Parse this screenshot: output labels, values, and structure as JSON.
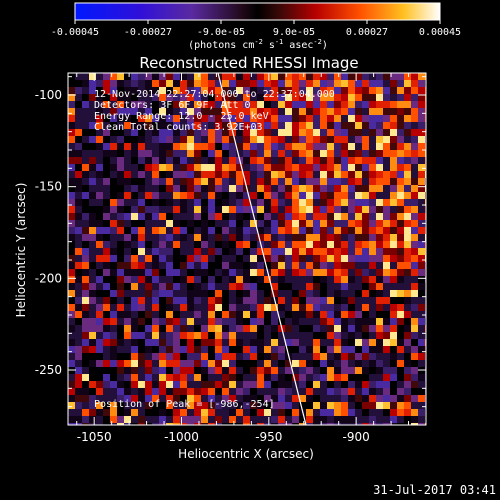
{
  "colorbar": {
    "tick_labels": [
      "-0.00045",
      "-0.00027",
      "-9.0e-05",
      "9.0e-05",
      "0.00027",
      "0.00045"
    ],
    "range": [
      -0.00045,
      0.00045
    ],
    "unit_main": "(photons cm",
    "unit_exp1": "-2",
    "unit_s": " s",
    "unit_exp2": "-1",
    "unit_asec": " asec",
    "unit_exp3": "-2",
    "unit_close": ")"
  },
  "plot": {
    "title": "Reconstructed RHESSI Image",
    "xlabel": "Heliocentric X (arcsec)",
    "ylabel": "Heliocentric Y (arcsec)",
    "x_ticks": [
      "-1050",
      "-1000",
      "-950",
      "-900"
    ],
    "y_ticks": [
      "-100",
      "-150",
      "-200",
      "-250"
    ],
    "xlim": [
      -1065,
      -860
    ],
    "ylim": [
      -280,
      -88
    ],
    "info_lines": [
      "12-Nov-2014 22:27:04.000 to 22:37:04.000",
      "Detectors: 3F 6F 9F, Att 0",
      "Energy Range: 12.0 - 25.0 keV",
      "Clean    Total counts: 3.92E+03"
    ],
    "peak_label": "Position of Peak = [-986,-254]",
    "peak_position": [
      -986,
      -254
    ]
  },
  "footer": {
    "timestamp": "31-Jul-2017 03:41"
  },
  "colors": {
    "background": "#000000",
    "text": "#ffffff",
    "limb_line": "#ffffff"
  }
}
